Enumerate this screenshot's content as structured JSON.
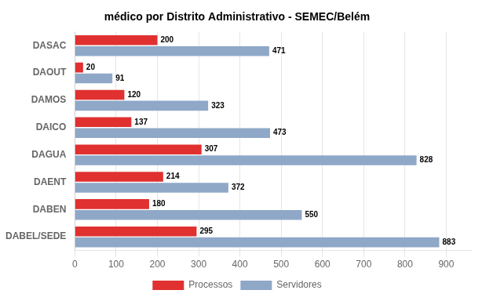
{
  "chart_data": {
    "type": "bar",
    "orientation": "horizontal",
    "title": "médico por Distrito Administrativo - SEMEC/Belém",
    "categories": [
      "DABEL/SEDE",
      "DABEN",
      "DAENT",
      "DAGUA",
      "DAICO",
      "DAMOS",
      "DAOUT",
      "DASAC"
    ],
    "series": [
      {
        "name": "Processos",
        "color": "#e03030",
        "values": [
          295,
          180,
          214,
          307,
          137,
          120,
          20,
          200
        ]
      },
      {
        "name": "Servidores",
        "color": "#8fa8c8",
        "values": [
          883,
          550,
          372,
          828,
          473,
          323,
          91,
          471
        ]
      }
    ],
    "xlim": [
      0,
      960
    ],
    "xticks": [
      0,
      100,
      200,
      300,
      400,
      500,
      600,
      700,
      800,
      900
    ],
    "grid": true,
    "legend": "bottom",
    "data_labels": true
  }
}
